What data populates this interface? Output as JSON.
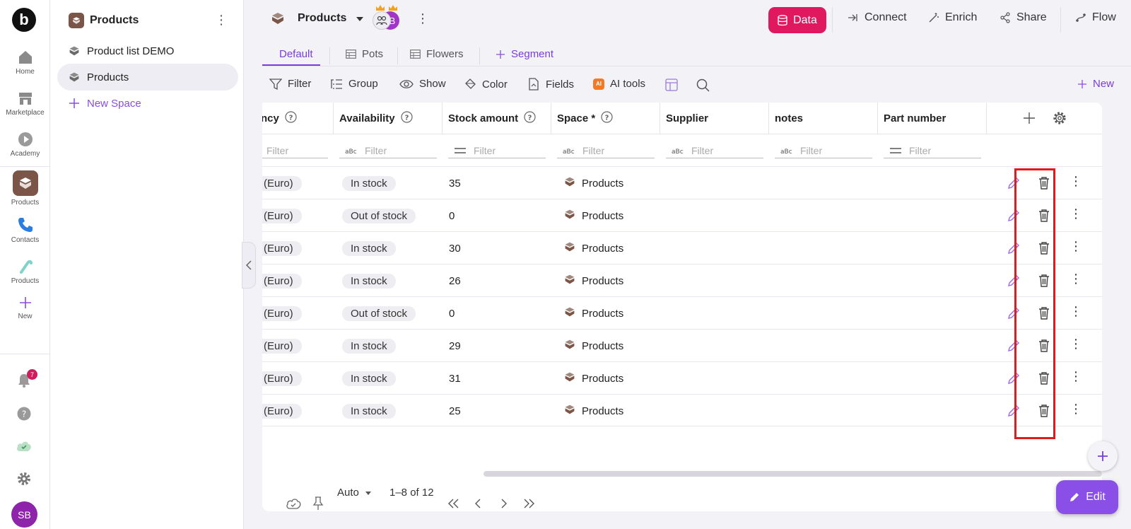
{
  "rail": {
    "logo": "b",
    "items": [
      {
        "label": "Home",
        "icon": "home-icon"
      },
      {
        "label": "Marketplace",
        "icon": "store-icon"
      },
      {
        "label": "Academy",
        "icon": "play-icon"
      },
      {
        "label": "Products",
        "icon": "box-icon"
      },
      {
        "label": "Contacts",
        "icon": "phone-icon"
      },
      {
        "label": "Products",
        "icon": "candy-cane-icon"
      },
      {
        "label": "New",
        "icon": "plus-icon"
      }
    ],
    "notification_count": "7",
    "avatar": "SB"
  },
  "sidebar": {
    "title": "Products",
    "items": [
      {
        "label": "Product list DEMO",
        "active": false
      },
      {
        "label": "Products",
        "active": true
      }
    ],
    "new_space": "New Space"
  },
  "header": {
    "title": "Products",
    "collab_letter": "B",
    "data_button": "Data",
    "links": [
      "Connect",
      "Enrich",
      "Share",
      "Flow"
    ]
  },
  "tabs": [
    {
      "label": "Default",
      "active": true
    },
    {
      "label": "Pots",
      "active": false
    },
    {
      "label": "Flowers",
      "active": false
    },
    {
      "label": "Segment",
      "active": false
    }
  ],
  "toolbar": {
    "filter": "Filter",
    "group": "Group",
    "show": "Show",
    "color": "Color",
    "fields": "Fields",
    "ai_tools": "AI tools",
    "new": "New"
  },
  "table": {
    "columns": [
      {
        "label": "ncy",
        "help": true,
        "filter_type": "text"
      },
      {
        "label": "Availability",
        "help": true,
        "filter_type": "text"
      },
      {
        "label": "Stock amount",
        "help": true,
        "filter_type": "number"
      },
      {
        "label": "Space *",
        "help": true,
        "filter_type": "text"
      },
      {
        "label": "Supplier",
        "help": false,
        "filter_type": "text"
      },
      {
        "label": "notes",
        "help": false,
        "filter_type": "text"
      },
      {
        "label": "Part number",
        "help": false,
        "filter_type": "number"
      }
    ],
    "filter_placeholder": "Filter",
    "rows": [
      {
        "currency": "(Euro)",
        "availability": "In stock",
        "stock": "35",
        "space": "Products"
      },
      {
        "currency": "(Euro)",
        "availability": "Out of stock",
        "stock": "0",
        "space": "Products"
      },
      {
        "currency": "(Euro)",
        "availability": "In stock",
        "stock": "30",
        "space": "Products"
      },
      {
        "currency": "(Euro)",
        "availability": "In stock",
        "stock": "26",
        "space": "Products"
      },
      {
        "currency": "(Euro)",
        "availability": "Out of stock",
        "stock": "0",
        "space": "Products"
      },
      {
        "currency": "(Euro)",
        "availability": "In stock",
        "stock": "29",
        "space": "Products"
      },
      {
        "currency": "(Euro)",
        "availability": "In stock",
        "stock": "31",
        "space": "Products"
      },
      {
        "currency": "(Euro)",
        "availability": "In stock",
        "stock": "25",
        "space": "Products"
      }
    ]
  },
  "footer": {
    "page_size": "Auto",
    "range": "1–8 of 12"
  },
  "fab": {
    "edit": "Edit"
  },
  "colors": {
    "accent": "#7a3ed8",
    "data_button": "#e0185e",
    "highlight": "#e01b1b"
  }
}
